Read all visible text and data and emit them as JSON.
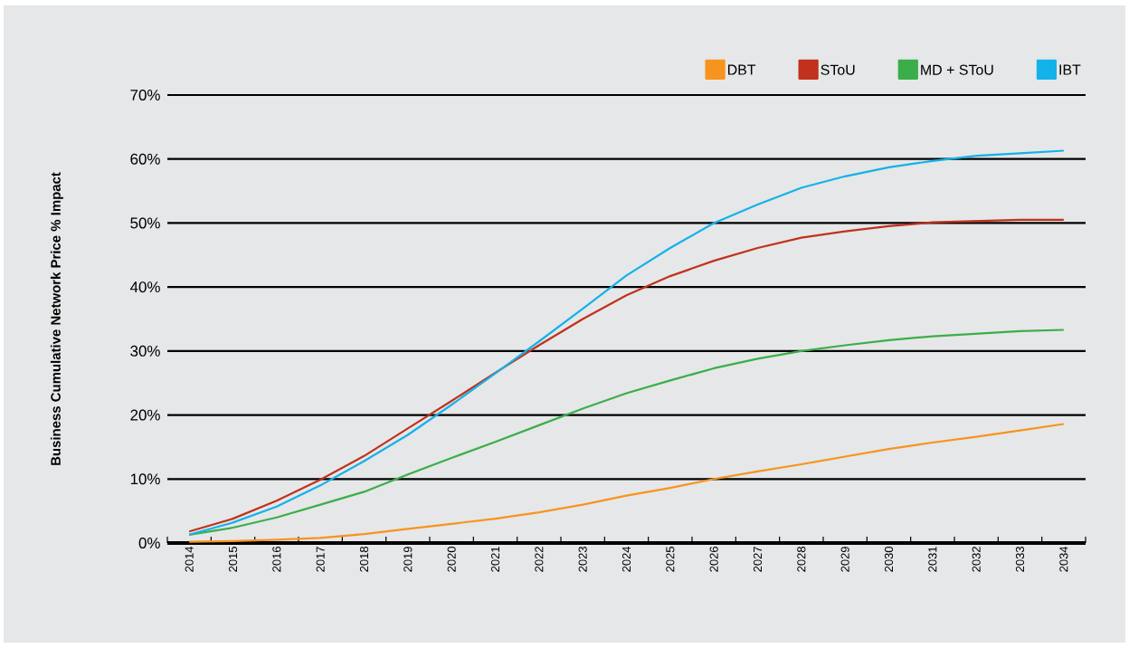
{
  "chart_data": {
    "type": "line",
    "ylabel": "Business Cumulative Network Price % Impact",
    "categories": [
      "2014",
      "2015",
      "2016",
      "2017",
      "2018",
      "2019",
      "2020",
      "2021",
      "2022",
      "2023",
      "2024",
      "2025",
      "2026",
      "2027",
      "2028",
      "2029",
      "2030",
      "2031",
      "2032",
      "2033",
      "2034"
    ],
    "series": [
      {
        "name": "DBT",
        "color": "#f7941d",
        "values": [
          0.2,
          0.3,
          0.5,
          0.8,
          1.4,
          2.2,
          3.0,
          3.8,
          4.8,
          6.0,
          7.4,
          8.6,
          10.0,
          11.2,
          12.3,
          13.5,
          14.7,
          15.7,
          16.6,
          17.6,
          18.6
        ]
      },
      {
        "name": "SToU",
        "color": "#c1311d",
        "values": [
          1.8,
          3.8,
          6.6,
          9.9,
          13.6,
          17.9,
          22.2,
          26.6,
          30.9,
          35.0,
          38.7,
          41.7,
          44.1,
          46.1,
          47.7,
          48.7,
          49.5,
          50.1,
          50.3,
          50.5,
          50.5
        ]
      },
      {
        "name": "MD + SToU",
        "color": "#3cae49",
        "values": [
          1.3,
          2.4,
          4.0,
          6.0,
          8.0,
          10.7,
          13.3,
          15.8,
          18.4,
          21.0,
          23.4,
          25.4,
          27.3,
          28.8,
          30.0,
          30.9,
          31.7,
          32.3,
          32.7,
          33.1,
          33.3
        ]
      },
      {
        "name": "IBT",
        "color": "#13b2ea",
        "values": [
          1.3,
          3.2,
          5.7,
          9.0,
          12.8,
          16.9,
          21.6,
          26.5,
          31.5,
          36.6,
          41.8,
          46.1,
          50.0,
          52.9,
          55.5,
          57.3,
          58.7,
          59.7,
          60.5,
          60.9,
          61.3
        ]
      }
    ],
    "ylim": [
      0,
      70
    ],
    "yticks": [
      {
        "value": 0,
        "label": "0%"
      },
      {
        "value": 10,
        "label": "10%"
      },
      {
        "value": 20,
        "label": "20%"
      },
      {
        "value": 30,
        "label": "30%"
      },
      {
        "value": 40,
        "label": "40%"
      },
      {
        "value": 50,
        "label": "50%"
      },
      {
        "value": 60,
        "label": "60%"
      },
      {
        "value": 70,
        "label": "70%"
      }
    ],
    "grid": "y",
    "legend": "top right",
    "marker": "none",
    "line_style": "solid"
  }
}
